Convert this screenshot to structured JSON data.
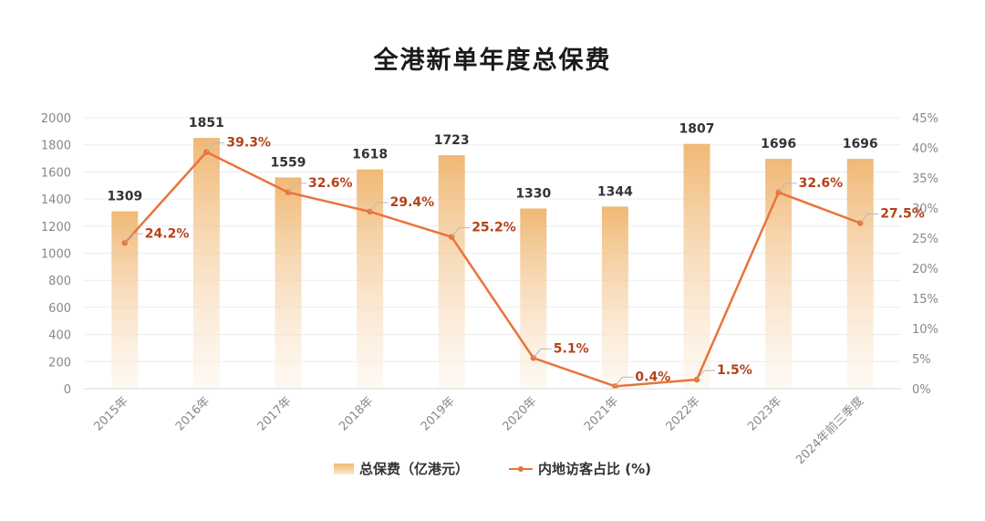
{
  "chart_data": {
    "type": "bar",
    "title": "全港新单年度总保费",
    "categories": [
      "2015年",
      "2016年",
      "2017年",
      "2018年",
      "2019年",
      "2020年",
      "2021年",
      "2022年",
      "2023年",
      "2024年前三季度"
    ],
    "series": [
      {
        "name": "总保费（亿港元）",
        "type": "bar",
        "axis": "left",
        "values": [
          1309,
          1851,
          1559,
          1618,
          1723,
          1330,
          1344,
          1807,
          1696,
          1696
        ],
        "labels": [
          "1309",
          "1851",
          "1559",
          "1618",
          "1723",
          "1330",
          "1344",
          "1807",
          "1696",
          "1696"
        ]
      },
      {
        "name": "内地访客占比 (%)",
        "type": "line",
        "axis": "right",
        "values": [
          24.2,
          39.3,
          32.6,
          29.4,
          25.2,
          5.1,
          0.4,
          1.5,
          32.6,
          27.5
        ],
        "labels": [
          "24.2%",
          "39.3%",
          "32.6%",
          "29.4%",
          "25.2%",
          "5.1%",
          "0.4%",
          "1.5%",
          "32.6%",
          "27.5%"
        ]
      }
    ],
    "y_left": {
      "lim": [
        0,
        2000
      ],
      "ticks": [
        "0",
        "200",
        "400",
        "600",
        "800",
        "1000",
        "1200",
        "1400",
        "1600",
        "1800",
        "2000"
      ]
    },
    "y_right": {
      "lim": [
        0,
        45
      ],
      "ticks": [
        "0%",
        "5%",
        "10%",
        "15%",
        "20%",
        "25%",
        "30%",
        "35%",
        "40%",
        "45%"
      ]
    },
    "grid": true,
    "legend": "bottom",
    "colors": {
      "bar_top": "#f0b875",
      "bar_bottom": "#fdf3e7",
      "line": "#e8743b",
      "line_label": "#b5411a",
      "bar_label": "#333333",
      "axis_text": "#888888",
      "grid": "#ececec"
    }
  }
}
